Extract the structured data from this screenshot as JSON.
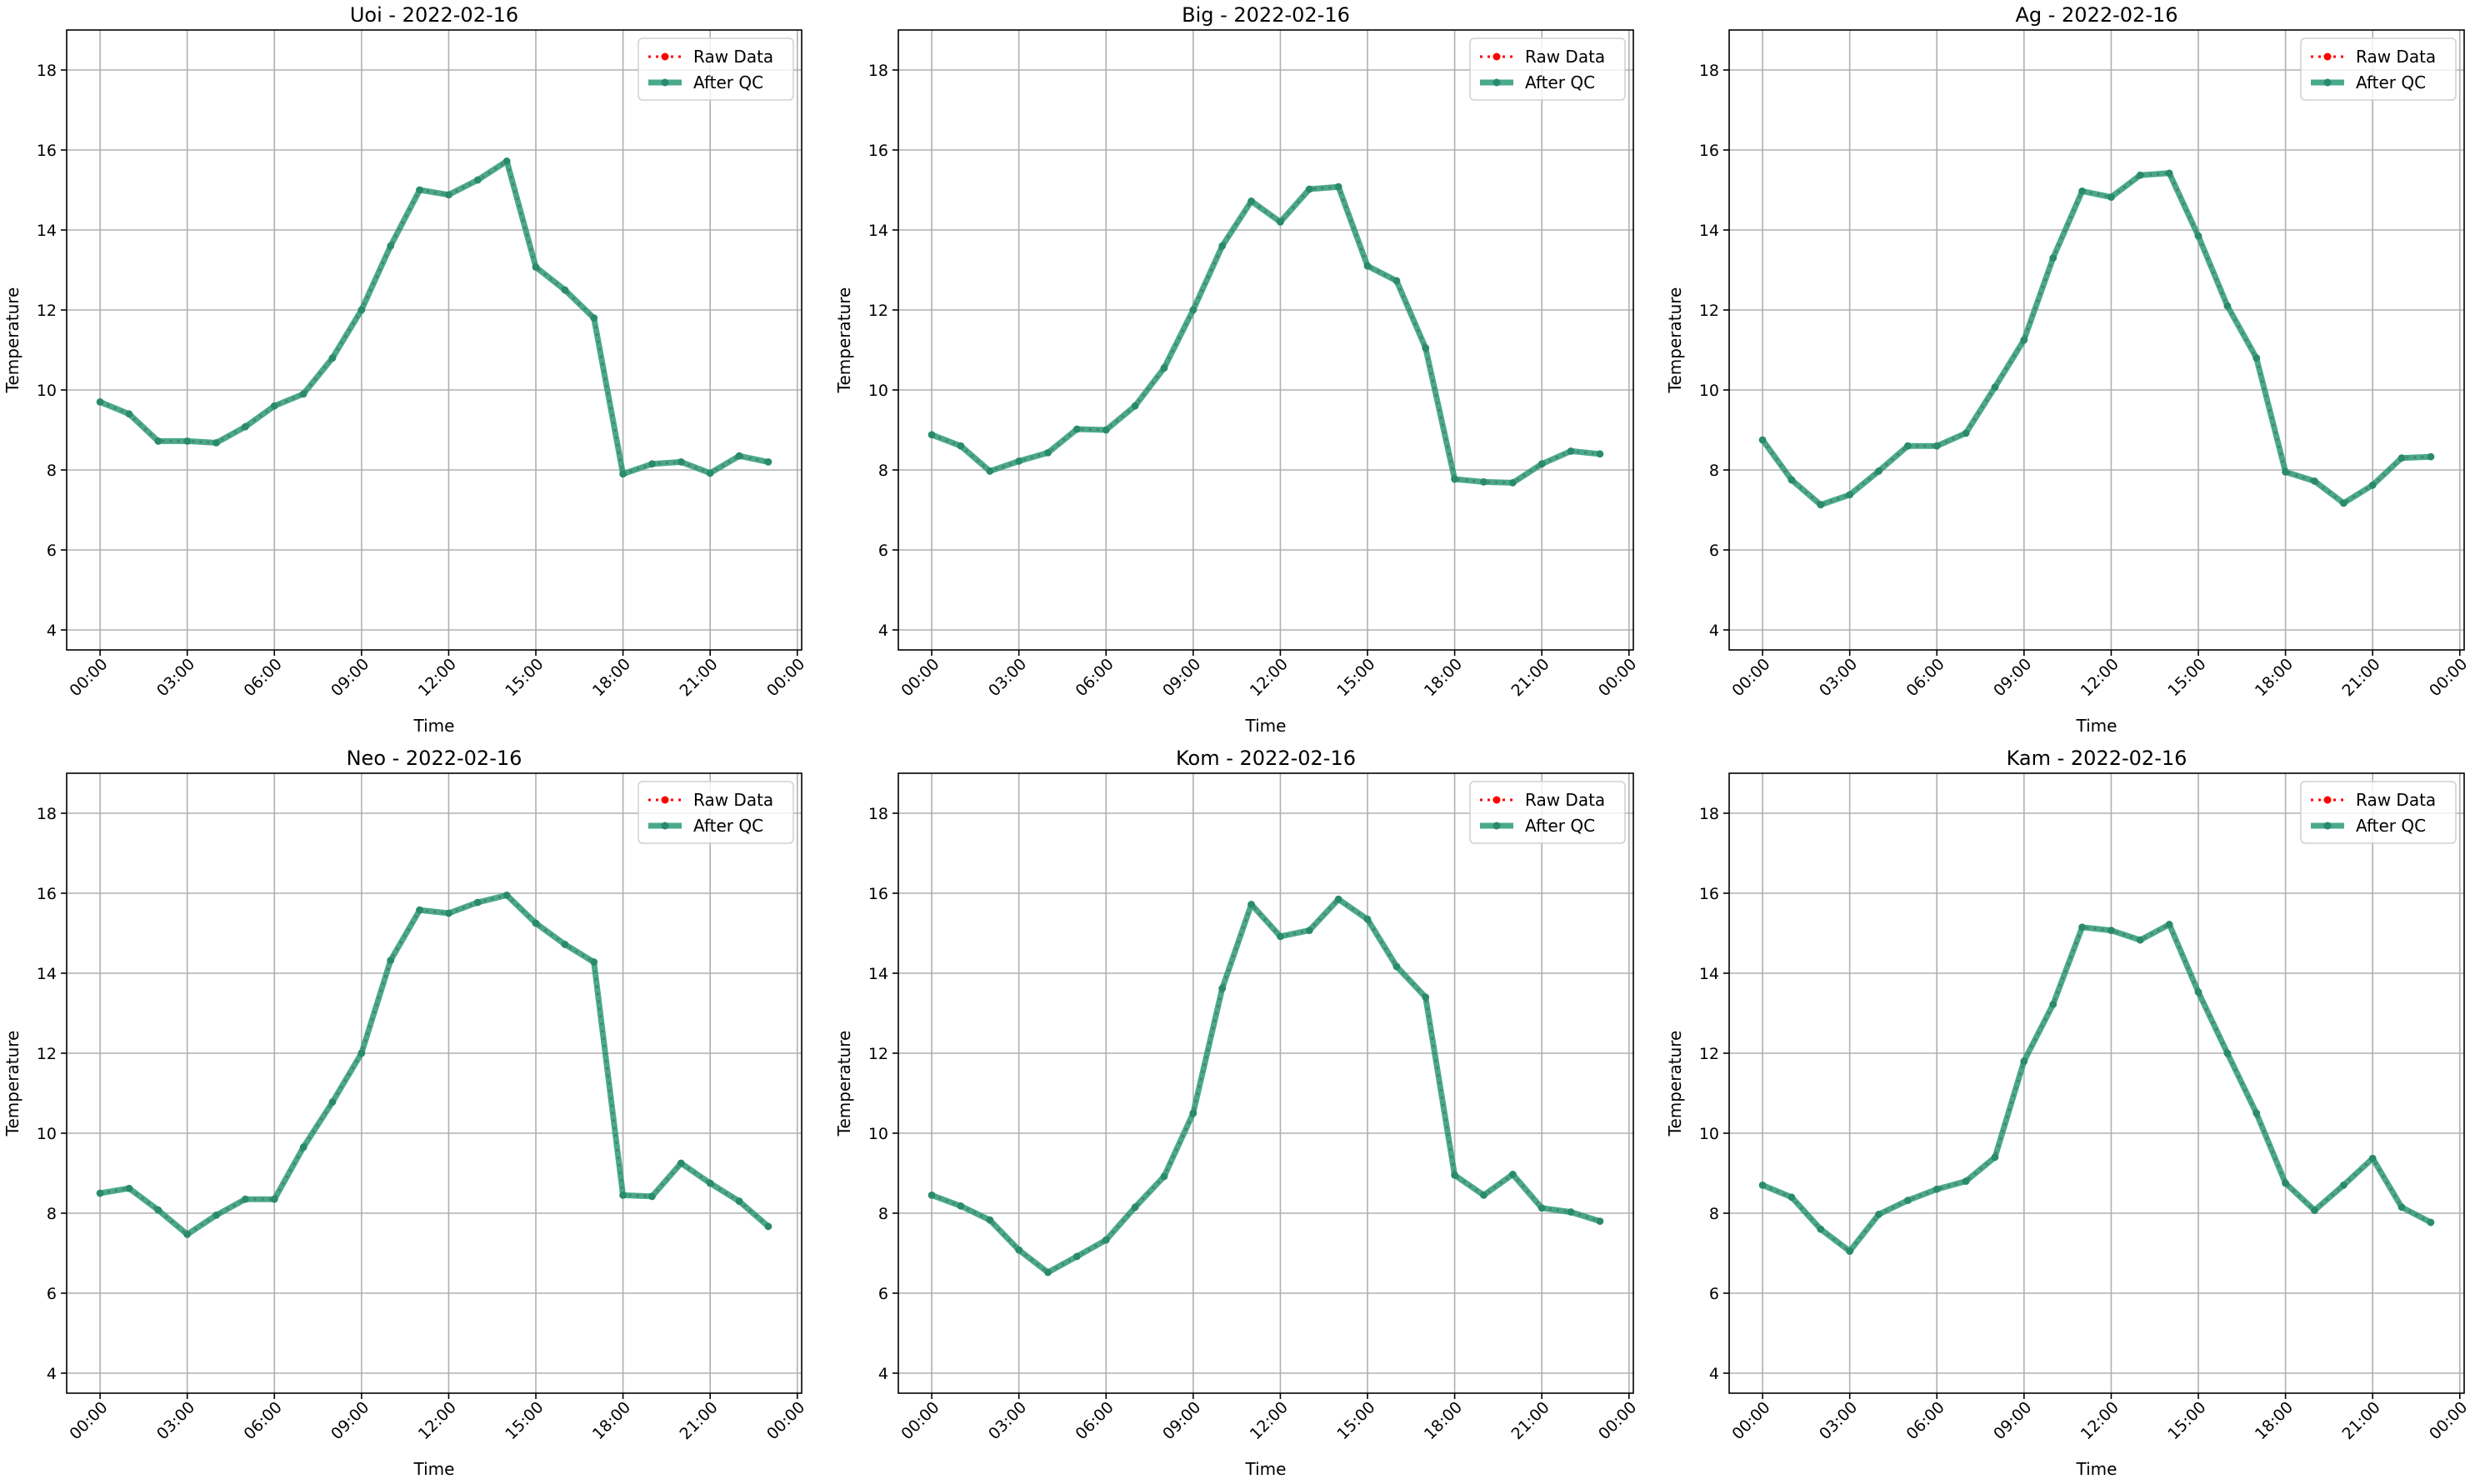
{
  "figure": {
    "xlabel": "Time",
    "ylabel": "Temperature"
  },
  "legend": {
    "raw_label": "Raw Data",
    "qc_label": "After QC",
    "placement": "upper right"
  },
  "colors": {
    "raw": "#ff0000",
    "qc": "#2a9a78",
    "grid": "#b0b0b0"
  },
  "chart_data": [
    {
      "type": "line",
      "title": "Uoi - 2022-02-16",
      "xlabel": "Time",
      "ylabel": "Temperature",
      "x": [
        "00:00",
        "01:00",
        "02:00",
        "03:00",
        "04:00",
        "05:00",
        "06:00",
        "07:00",
        "08:00",
        "09:00",
        "10:00",
        "11:00",
        "12:00",
        "13:00",
        "14:00",
        "15:00",
        "16:00",
        "17:00",
        "18:00",
        "19:00",
        "20:00",
        "21:00",
        "22:00",
        "23:00"
      ],
      "xticks": [
        "00:00",
        "03:00",
        "06:00",
        "09:00",
        "12:00",
        "15:00",
        "18:00",
        "21:00",
        "00:00"
      ],
      "yticks": [
        4,
        6,
        8,
        10,
        12,
        14,
        16,
        18
      ],
      "ylim": [
        3.5,
        19
      ],
      "grid": true,
      "series": [
        {
          "name": "Raw Data",
          "values": [
            9.7,
            9.4,
            8.72,
            8.72,
            8.68,
            9.08,
            9.6,
            9.9,
            10.8,
            12.0,
            13.6,
            15.0,
            14.88,
            15.25,
            15.72,
            13.07,
            12.5,
            11.8,
            7.9,
            8.15,
            8.2,
            7.92,
            8.35,
            8.2
          ]
        },
        {
          "name": "After QC",
          "values": [
            9.7,
            9.4,
            8.72,
            8.72,
            8.68,
            9.08,
            9.6,
            9.9,
            10.8,
            12.0,
            13.6,
            15.0,
            14.88,
            15.25,
            15.72,
            13.07,
            12.5,
            11.8,
            7.9,
            8.15,
            8.2,
            7.92,
            8.35,
            8.2
          ]
        }
      ]
    },
    {
      "type": "line",
      "title": "Big - 2022-02-16",
      "xlabel": "Time",
      "ylabel": "Temperature",
      "x": [
        "00:00",
        "01:00",
        "02:00",
        "03:00",
        "04:00",
        "05:00",
        "06:00",
        "07:00",
        "08:00",
        "09:00",
        "10:00",
        "11:00",
        "12:00",
        "13:00",
        "14:00",
        "15:00",
        "16:00",
        "17:00",
        "18:00",
        "19:00",
        "20:00",
        "21:00",
        "22:00",
        "23:00"
      ],
      "xticks": [
        "00:00",
        "03:00",
        "06:00",
        "09:00",
        "12:00",
        "15:00",
        "18:00",
        "21:00",
        "00:00"
      ],
      "yticks": [
        4,
        6,
        8,
        10,
        12,
        14,
        16,
        18
      ],
      "ylim": [
        3.5,
        19
      ],
      "grid": true,
      "series": [
        {
          "name": "Raw Data",
          "values": [
            8.88,
            8.6,
            7.97,
            8.22,
            8.43,
            9.02,
            9.0,
            9.6,
            10.55,
            12.0,
            13.6,
            14.72,
            14.2,
            15.02,
            15.08,
            13.1,
            12.73,
            11.05,
            7.77,
            7.7,
            7.68,
            8.15,
            8.47,
            8.4
          ]
        },
        {
          "name": "After QC",
          "values": [
            8.88,
            8.6,
            7.97,
            8.22,
            8.43,
            9.02,
            9.0,
            9.6,
            10.55,
            12.0,
            13.6,
            14.72,
            14.2,
            15.02,
            15.08,
            13.1,
            12.73,
            11.05,
            7.77,
            7.7,
            7.68,
            8.15,
            8.47,
            8.4
          ]
        }
      ]
    },
    {
      "type": "line",
      "title": "Ag - 2022-02-16",
      "xlabel": "Time",
      "ylabel": "Temperature",
      "x": [
        "00:00",
        "01:00",
        "02:00",
        "03:00",
        "04:00",
        "05:00",
        "06:00",
        "07:00",
        "08:00",
        "09:00",
        "10:00",
        "11:00",
        "12:00",
        "13:00",
        "14:00",
        "15:00",
        "16:00",
        "17:00",
        "18:00",
        "19:00",
        "20:00",
        "21:00",
        "22:00",
        "23:00"
      ],
      "xticks": [
        "00:00",
        "03:00",
        "06:00",
        "09:00",
        "12:00",
        "15:00",
        "18:00",
        "21:00",
        "00:00"
      ],
      "yticks": [
        4,
        6,
        8,
        10,
        12,
        14,
        16,
        18
      ],
      "ylim": [
        3.5,
        19
      ],
      "grid": true,
      "series": [
        {
          "name": "Raw Data",
          "values": [
            8.75,
            7.75,
            7.13,
            7.38,
            7.97,
            8.6,
            8.6,
            8.92,
            10.07,
            11.25,
            13.3,
            14.97,
            14.82,
            15.37,
            15.42,
            13.85,
            12.1,
            10.8,
            7.95,
            7.72,
            7.17,
            7.62,
            8.3,
            8.33
          ]
        },
        {
          "name": "After QC",
          "values": [
            8.75,
            7.75,
            7.13,
            7.38,
            7.97,
            8.6,
            8.6,
            8.92,
            10.07,
            11.25,
            13.3,
            14.97,
            14.82,
            15.37,
            15.42,
            13.85,
            12.1,
            10.8,
            7.95,
            7.72,
            7.17,
            7.62,
            8.3,
            8.33
          ]
        }
      ]
    },
    {
      "type": "line",
      "title": "Neo - 2022-02-16",
      "xlabel": "Time",
      "ylabel": "Temperature",
      "x": [
        "00:00",
        "01:00",
        "02:00",
        "03:00",
        "04:00",
        "05:00",
        "06:00",
        "07:00",
        "08:00",
        "09:00",
        "10:00",
        "11:00",
        "12:00",
        "13:00",
        "14:00",
        "15:00",
        "16:00",
        "17:00",
        "18:00",
        "19:00",
        "20:00",
        "21:00",
        "22:00",
        "23:00"
      ],
      "xticks": [
        "00:00",
        "03:00",
        "06:00",
        "09:00",
        "12:00",
        "15:00",
        "18:00",
        "21:00",
        "00:00"
      ],
      "yticks": [
        4,
        6,
        8,
        10,
        12,
        14,
        16,
        18
      ],
      "ylim": [
        3.5,
        19
      ],
      "grid": true,
      "series": [
        {
          "name": "Raw Data",
          "values": [
            8.5,
            8.62,
            8.08,
            7.47,
            7.95,
            8.35,
            8.35,
            9.65,
            10.78,
            12.0,
            14.32,
            15.58,
            15.5,
            15.77,
            15.95,
            15.25,
            14.72,
            14.28,
            8.45,
            8.42,
            9.25,
            8.75,
            8.3,
            7.67
          ]
        },
        {
          "name": "After QC",
          "values": [
            8.5,
            8.62,
            8.08,
            7.47,
            7.95,
            8.35,
            8.35,
            9.65,
            10.78,
            12.0,
            14.32,
            15.58,
            15.5,
            15.77,
            15.95,
            15.25,
            14.72,
            14.28,
            8.45,
            8.42,
            9.25,
            8.75,
            8.3,
            7.67
          ]
        }
      ]
    },
    {
      "type": "line",
      "title": "Kom - 2022-02-16",
      "xlabel": "Time",
      "ylabel": "Temperature",
      "x": [
        "00:00",
        "01:00",
        "02:00",
        "03:00",
        "04:00",
        "05:00",
        "06:00",
        "07:00",
        "08:00",
        "09:00",
        "10:00",
        "11:00",
        "12:00",
        "13:00",
        "14:00",
        "15:00",
        "16:00",
        "17:00",
        "18:00",
        "19:00",
        "20:00",
        "21:00",
        "22:00",
        "23:00"
      ],
      "xticks": [
        "00:00",
        "03:00",
        "06:00",
        "09:00",
        "12:00",
        "15:00",
        "18:00",
        "21:00",
        "00:00"
      ],
      "yticks": [
        4,
        6,
        8,
        10,
        12,
        14,
        16,
        18
      ],
      "ylim": [
        3.5,
        19
      ],
      "grid": true,
      "series": [
        {
          "name": "Raw Data",
          "values": [
            8.45,
            8.18,
            7.83,
            7.08,
            6.52,
            6.92,
            7.33,
            8.15,
            8.92,
            10.5,
            13.62,
            15.72,
            14.92,
            15.07,
            15.85,
            15.35,
            14.17,
            13.4,
            8.95,
            8.45,
            8.97,
            8.13,
            8.03,
            7.8
          ]
        },
        {
          "name": "After QC",
          "values": [
            8.45,
            8.18,
            7.83,
            7.08,
            6.52,
            6.92,
            7.33,
            8.15,
            8.92,
            10.5,
            13.62,
            15.72,
            14.92,
            15.07,
            15.85,
            15.35,
            14.17,
            13.4,
            8.95,
            8.45,
            8.97,
            8.13,
            8.03,
            7.8
          ]
        }
      ]
    },
    {
      "type": "line",
      "title": "Kam - 2022-02-16",
      "xlabel": "Time",
      "ylabel": "Temperature",
      "x": [
        "00:00",
        "01:00",
        "02:00",
        "03:00",
        "04:00",
        "05:00",
        "06:00",
        "07:00",
        "08:00",
        "09:00",
        "10:00",
        "11:00",
        "12:00",
        "13:00",
        "14:00",
        "15:00",
        "16:00",
        "17:00",
        "18:00",
        "19:00",
        "20:00",
        "21:00",
        "22:00",
        "23:00"
      ],
      "xticks": [
        "00:00",
        "03:00",
        "06:00",
        "09:00",
        "12:00",
        "15:00",
        "18:00",
        "21:00",
        "00:00"
      ],
      "yticks": [
        4,
        6,
        8,
        10,
        12,
        14,
        16,
        18
      ],
      "ylim": [
        3.5,
        19
      ],
      "grid": true,
      "series": [
        {
          "name": "Raw Data",
          "values": [
            8.7,
            8.4,
            7.6,
            7.05,
            7.97,
            8.32,
            8.6,
            8.8,
            9.4,
            11.8,
            13.22,
            15.15,
            15.07,
            14.83,
            15.22,
            13.53,
            12.0,
            10.5,
            8.75,
            8.07,
            8.7,
            9.37,
            8.15,
            7.77
          ]
        },
        {
          "name": "After QC",
          "values": [
            8.7,
            8.4,
            7.6,
            7.05,
            7.97,
            8.32,
            8.6,
            8.8,
            9.4,
            11.8,
            13.22,
            15.15,
            15.07,
            14.83,
            15.22,
            13.53,
            12.0,
            10.5,
            8.75,
            8.07,
            8.7,
            9.37,
            8.15,
            7.77
          ]
        }
      ]
    }
  ]
}
